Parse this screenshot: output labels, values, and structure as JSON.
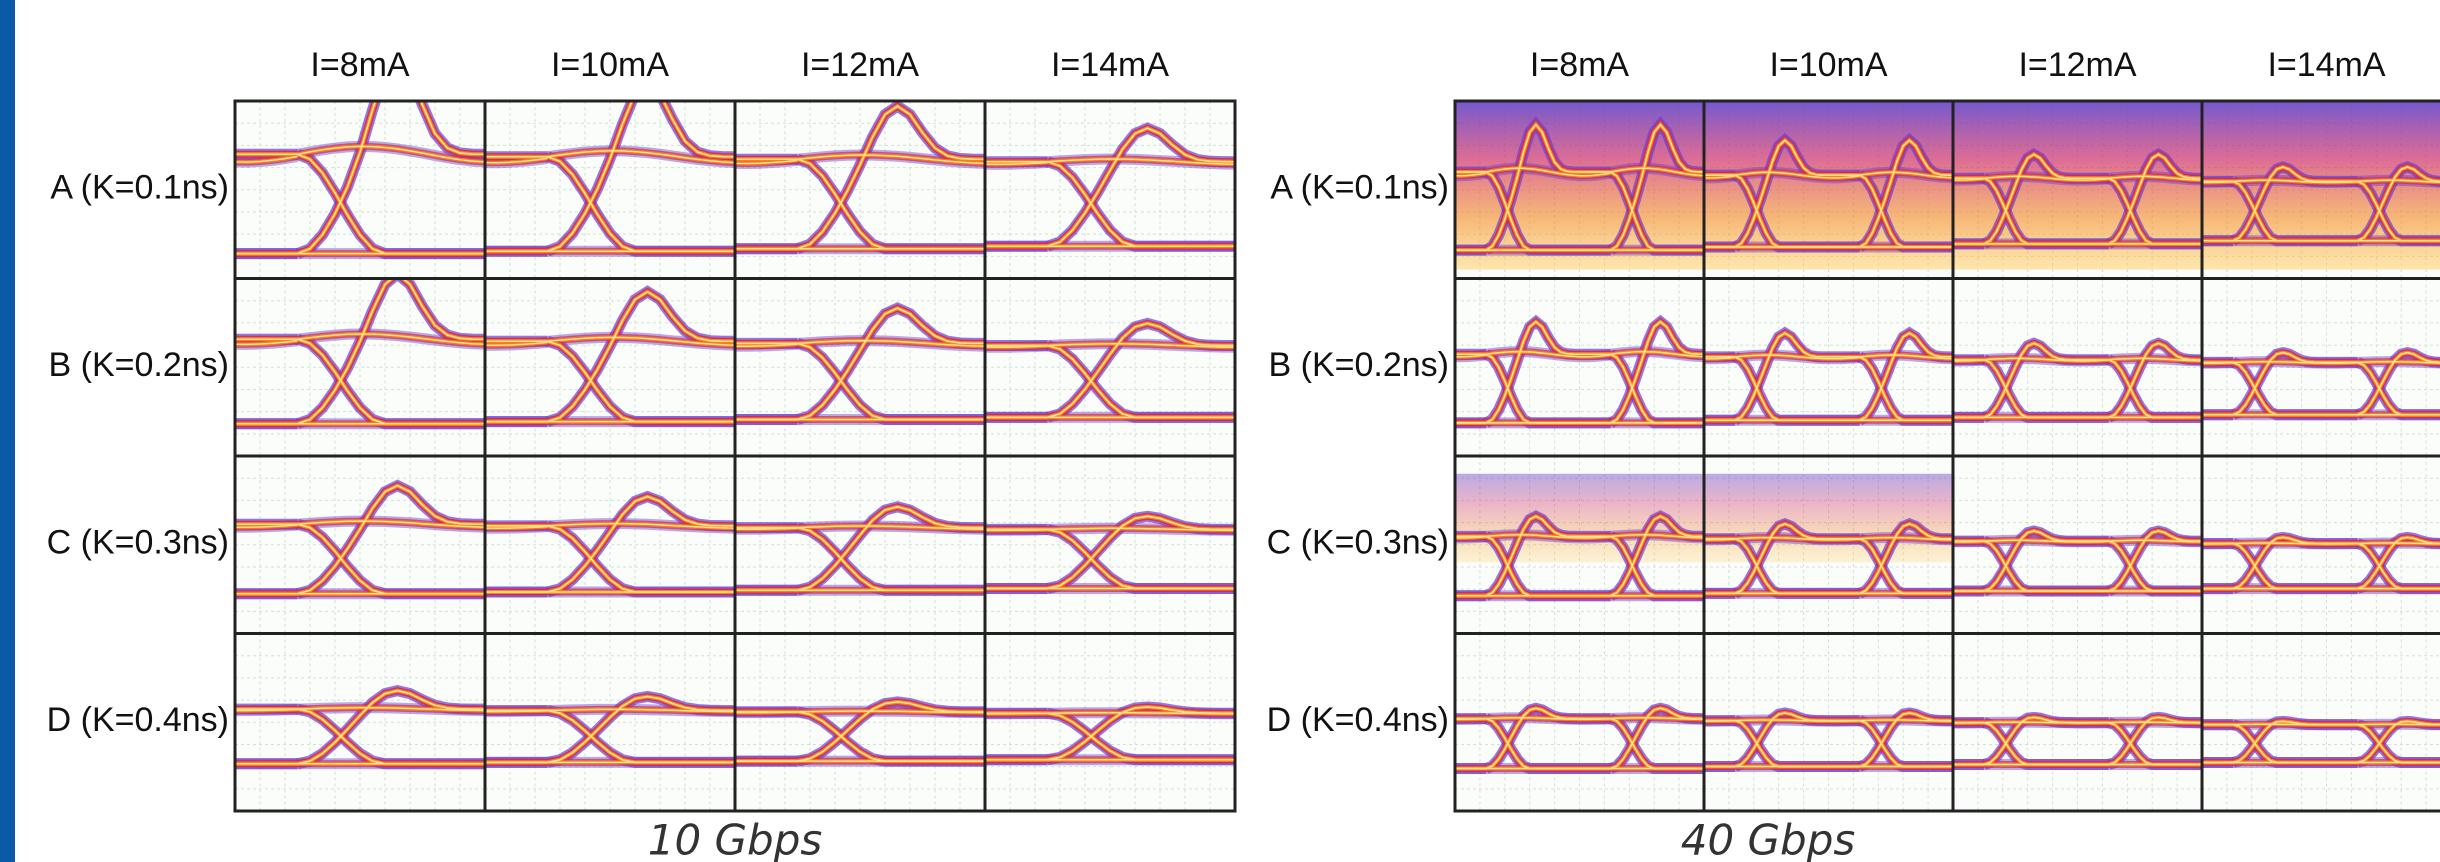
{
  "panels": [
    {
      "caption": "10 Gbps",
      "columns": [
        "I=8mA",
        "I=10mA",
        "I=12mA",
        "I=14mA"
      ],
      "rows": [
        "A (K=0.1ns)",
        "B (K=0.2ns)",
        "C (K=0.3ns)",
        "D (K=0.4ns)"
      ]
    },
    {
      "caption": "40 Gbps",
      "columns": [
        "I=8mA",
        "I=10mA",
        "I=12mA",
        "I=14mA"
      ],
      "rows": [
        "A (K=0.1ns)",
        "B (K=0.2ns)",
        "C (K=0.3ns)",
        "D (K=0.4ns)"
      ]
    }
  ]
}
